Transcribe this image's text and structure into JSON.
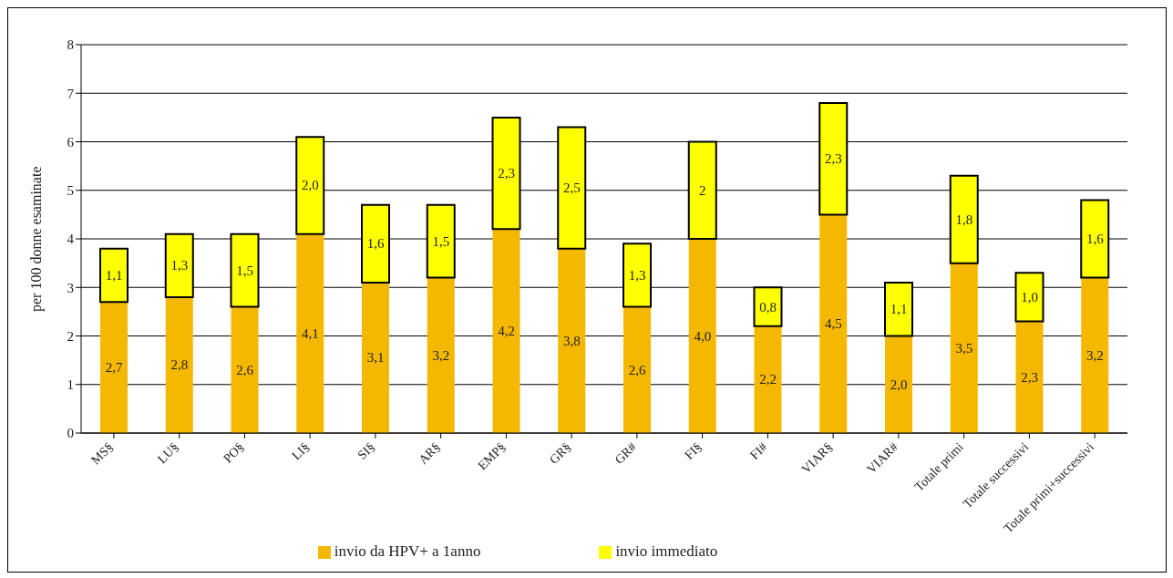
{
  "chart_data": {
    "type": "bar",
    "stacked": true,
    "ylabel": "per 100 donne esaminate",
    "categories": [
      "MS§",
      "LU§",
      "PO§",
      "LI§",
      "SI§",
      "AR§",
      "EMP§",
      "GR§",
      "GR#",
      "FI§",
      "FI#",
      "VIAR§",
      "VIAR#",
      "Totale primi",
      "Totale successivi",
      "Totale primi+successivi"
    ],
    "series": [
      {
        "name": "invio da HPV+ a 1anno",
        "color": "#f5b800",
        "values": [
          2.7,
          2.8,
          2.6,
          4.1,
          3.1,
          3.2,
          4.2,
          3.8,
          2.6,
          4.0,
          2.2,
          4.5,
          2.0,
          3.5,
          2.3,
          3.2
        ],
        "value_labels": [
          "2,7",
          "2,8",
          "2,6",
          "4,1",
          "3,1",
          "3,2",
          "4,2",
          "3,8",
          "2,6",
          "4,0",
          "2,2",
          "4,5",
          "2,0",
          "3,5",
          "2,3",
          "3,2"
        ]
      },
      {
        "name": "invio immediato",
        "color": "#ffff00",
        "values": [
          1.1,
          1.3,
          1.5,
          2.0,
          1.6,
          1.5,
          2.3,
          2.5,
          1.3,
          2,
          0.8,
          2.3,
          1.1,
          1.8,
          1.0,
          1.6
        ],
        "value_labels": [
          "1,1",
          "1,3",
          "1,5",
          "2,0",
          "1,6",
          "1,5",
          "2,3",
          "2,5",
          "1,3",
          "2",
          "0,8",
          "2,3",
          "1,1",
          "1,8",
          "1,0",
          "1,6"
        ]
      }
    ],
    "ylim": [
      0,
      8
    ],
    "yticks": [
      0,
      1,
      2,
      3,
      4,
      5,
      6,
      7,
      8
    ],
    "grid": "y",
    "legend": "bottom"
  }
}
